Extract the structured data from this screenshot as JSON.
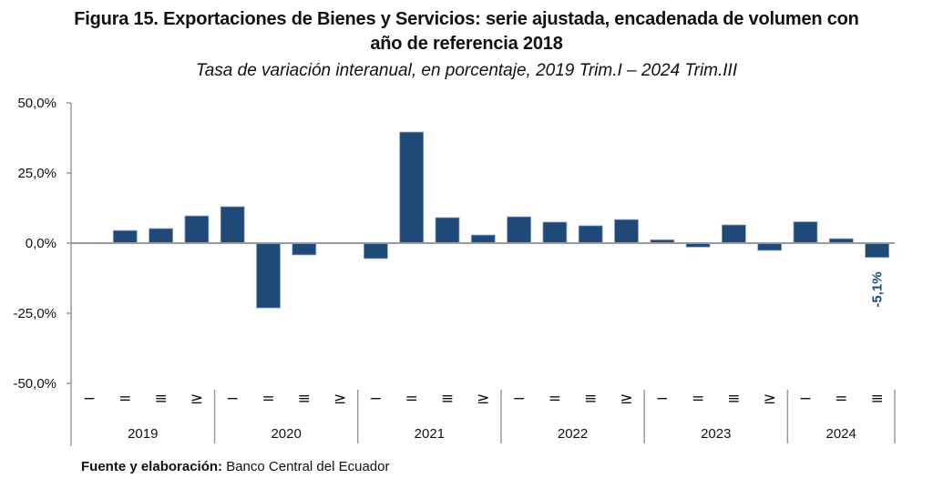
{
  "header": {
    "title_line1": "Figura 15. Exportaciones de Bienes y Servicios: serie ajustada, encadenada de volumen con",
    "title_line2": "año de referencia 2018",
    "subtitle": "Tasa de variación interanual, en porcentaje, 2019 Trim.I – 2024 Trim.III"
  },
  "footer": {
    "source_label": "Fuente y elaboración:",
    "source_value": " Banco Central del Ecuador"
  },
  "colors": {
    "bar": "#1f4a78",
    "bar_edge": "#8ea7c4",
    "axis": "#9a9a9a",
    "label": "#1f4a78"
  },
  "chart_data": {
    "type": "bar",
    "title": "Figura 15. Exportaciones de Bienes y Servicios: serie ajustada, encadenada de volumen con año de referencia 2018",
    "subtitle": "Tasa de variación interanual, en porcentaje, 2019 Trim.I – 2024 Trim.III",
    "xlabel": "",
    "ylabel": "",
    "ylim": [
      -50,
      50
    ],
    "yticks": [
      50,
      25,
      0,
      -25,
      -50
    ],
    "ytick_labels": [
      "50,0%",
      "25,0%",
      "0,0%",
      "-25,0%",
      "-50,0%"
    ],
    "grid": false,
    "legend": "none",
    "quarter_labels": [
      "−",
      "=",
      "≡",
      "≥"
    ],
    "groups": [
      {
        "year": "2019",
        "quarters": [
          "−",
          "=",
          "≡",
          "≥"
        ]
      },
      {
        "year": "2020",
        "quarters": [
          "−",
          "=",
          "≡",
          "≥"
        ]
      },
      {
        "year": "2021",
        "quarters": [
          "−",
          "=",
          "≡",
          "≥"
        ]
      },
      {
        "year": "2022",
        "quarters": [
          "−",
          "=",
          "≡",
          "≥"
        ]
      },
      {
        "year": "2023",
        "quarters": [
          "−",
          "=",
          "≡",
          "≥"
        ]
      },
      {
        "year": "2024",
        "quarters": [
          "−",
          "=",
          "≡"
        ]
      }
    ],
    "categories": [
      "2019 I",
      "2019 II",
      "2019 III",
      "2019 IV",
      "2020 I",
      "2020 II",
      "2020 III",
      "2020 IV",
      "2021 I",
      "2021 II",
      "2021 III",
      "2021 IV",
      "2022 I",
      "2022 II",
      "2022 III",
      "2022 IV",
      "2023 I",
      "2023 II",
      "2023 III",
      "2023 IV",
      "2024 I",
      "2024 II",
      "2024 III"
    ],
    "values": [
      0.0,
      4.5,
      5.2,
      9.7,
      13.0,
      -23.1,
      -4.2,
      0.0,
      -5.5,
      39.6,
      9.1,
      2.9,
      9.4,
      7.5,
      6.2,
      8.4,
      1.2,
      -1.4,
      6.5,
      -2.6,
      7.6,
      1.6,
      -5.1
    ],
    "annotations": [
      {
        "category": "2024 III",
        "text": "-5,1%"
      }
    ]
  }
}
